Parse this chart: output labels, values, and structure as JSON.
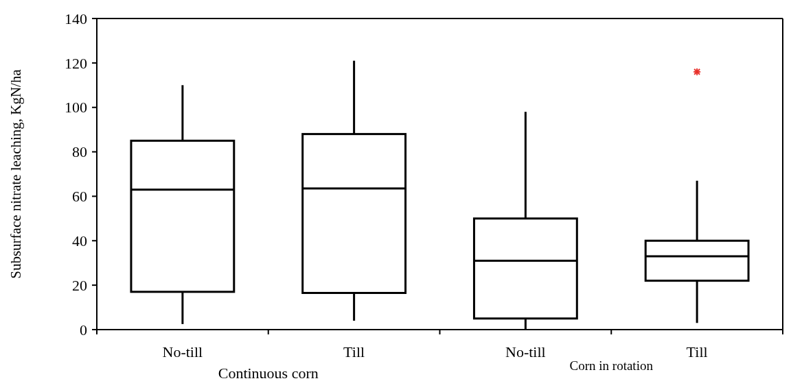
{
  "chart_data": {
    "type": "box",
    "ylabel": "Subsurface nitrate leaching, KgN/ha",
    "categories": [
      "No-till",
      "Till",
      "No-till",
      "Till"
    ],
    "boxes": [
      {
        "low": 2.5,
        "q1": 17,
        "median": 63,
        "q3": 85,
        "high": 110
      },
      {
        "low": 4,
        "q1": 16.5,
        "median": 63.5,
        "q3": 88,
        "high": 121
      },
      {
        "low": 0,
        "q1": 5,
        "median": 31,
        "q3": 50,
        "high": 98
      },
      {
        "low": 3,
        "q1": 22,
        "median": 33,
        "q3": 40,
        "high": 67,
        "outliers": [
          116
        ]
      }
    ],
    "ylim": [
      0,
      140
    ],
    "yticks": [
      0,
      20,
      40,
      60,
      80,
      100,
      120,
      140
    ],
    "grid": false,
    "annotations": [
      "Continuous corn",
      "Corn in rotation"
    ]
  }
}
